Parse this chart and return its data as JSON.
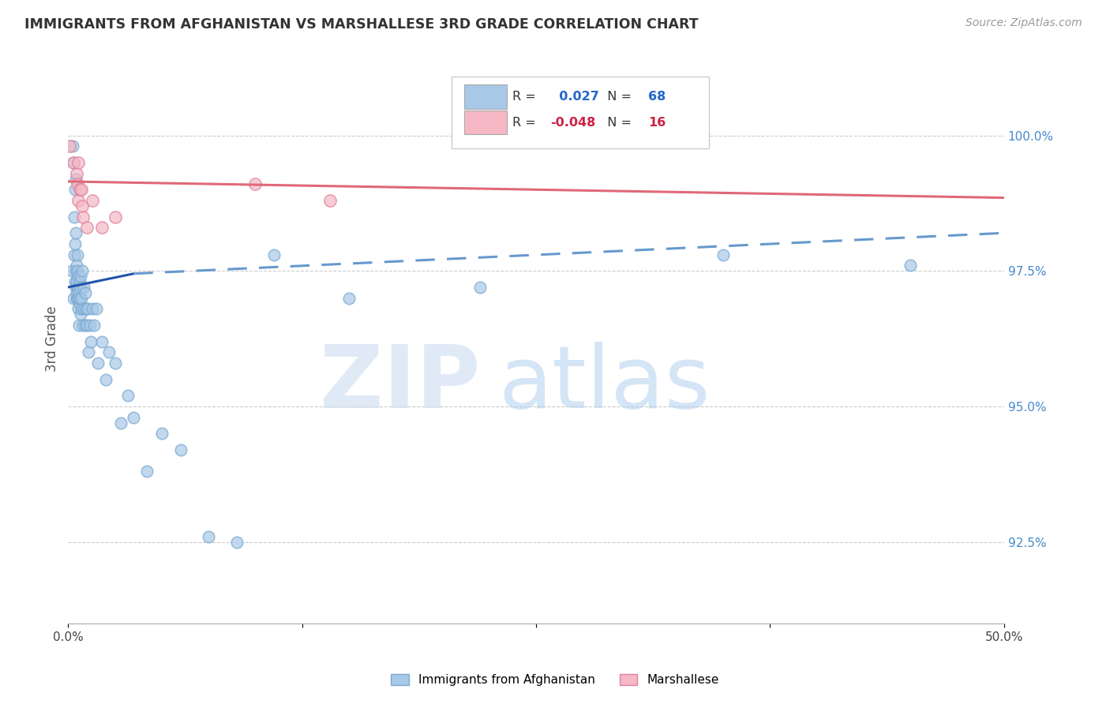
{
  "title": "IMMIGRANTS FROM AFGHANISTAN VS MARSHALLESE 3RD GRADE CORRELATION CHART",
  "source": "Source: ZipAtlas.com",
  "ylabel": "3rd Grade",
  "yticks": [
    92.5,
    95.0,
    97.5,
    100.0
  ],
  "ytick_labels": [
    "92.5%",
    "95.0%",
    "97.5%",
    "100.0%"
  ],
  "xlim": [
    0.0,
    50.0
  ],
  "ylim": [
    91.0,
    101.5
  ],
  "r_blue": 0.027,
  "n_blue": 68,
  "r_pink": -0.048,
  "n_pink": 16,
  "legend_label_blue": "Immigrants from Afghanistan",
  "legend_label_pink": "Marshallese",
  "blue_color": "#a8c8e8",
  "blue_edge_color": "#7aaad0",
  "pink_color": "#f5b8c4",
  "pink_edge_color": "#e080a0",
  "trend_blue_solid_color": "#2255aa",
  "trend_blue_dashed_color": "#6699cc",
  "trend_pink_color": "#e06878",
  "watermark_zip": "ZIP",
  "watermark_atlas": "atlas",
  "blue_points_x": [
    0.18,
    0.25,
    0.28,
    0.3,
    0.32,
    0.33,
    0.35,
    0.35,
    0.38,
    0.4,
    0.42,
    0.42,
    0.43,
    0.44,
    0.45,
    0.46,
    0.47,
    0.48,
    0.48,
    0.5,
    0.5,
    0.52,
    0.53,
    0.55,
    0.55,
    0.57,
    0.58,
    0.6,
    0.6,
    0.62,
    0.65,
    0.65,
    0.68,
    0.7,
    0.72,
    0.75,
    0.8,
    0.82,
    0.85,
    0.9,
    0.92,
    0.95,
    1.0,
    1.05,
    1.1,
    1.15,
    1.2,
    1.3,
    1.4,
    1.5,
    1.6,
    1.8,
    2.0,
    2.2,
    2.5,
    2.8,
    3.2,
    3.5,
    4.2,
    5.0,
    6.0,
    7.5,
    9.0,
    11.0,
    15.0,
    22.0,
    35.0,
    45.0
  ],
  "blue_points_y": [
    97.5,
    99.8,
    99.5,
    97.0,
    97.8,
    98.5,
    99.0,
    97.3,
    98.0,
    99.2,
    97.5,
    98.2,
    97.2,
    97.0,
    97.6,
    97.1,
    97.3,
    97.8,
    97.0,
    97.5,
    97.2,
    97.0,
    97.4,
    96.8,
    97.2,
    96.5,
    97.1,
    97.3,
    96.9,
    97.0,
    96.7,
    97.4,
    97.2,
    96.8,
    97.0,
    97.5,
    96.5,
    97.2,
    96.8,
    97.1,
    96.5,
    96.8,
    96.5,
    96.8,
    96.0,
    96.5,
    96.2,
    96.8,
    96.5,
    96.8,
    95.8,
    96.2,
    95.5,
    96.0,
    95.8,
    94.7,
    95.2,
    94.8,
    93.8,
    94.5,
    94.2,
    92.6,
    92.5,
    97.8,
    97.0,
    97.2,
    97.8,
    97.6
  ],
  "pink_points_x": [
    0.08,
    0.3,
    0.45,
    0.48,
    0.52,
    0.55,
    0.62,
    0.7,
    0.75,
    0.8,
    1.0,
    1.3,
    1.8,
    2.5,
    10.0,
    14.0
  ],
  "pink_points_y": [
    99.8,
    99.5,
    99.3,
    99.1,
    99.5,
    98.8,
    99.0,
    99.0,
    98.7,
    98.5,
    98.3,
    98.8,
    98.3,
    98.5,
    99.1,
    98.8
  ],
  "blue_solid_x0": 0.0,
  "blue_solid_x1": 3.5,
  "blue_solid_y0": 97.2,
  "blue_solid_y1": 97.45,
  "blue_dashed_x0": 3.5,
  "blue_dashed_x1": 50.0,
  "blue_dashed_y0": 97.45,
  "blue_dashed_y1": 98.2,
  "pink_line_x0": 0.0,
  "pink_line_x1": 50.0,
  "pink_line_y0": 99.15,
  "pink_line_y1": 98.85
}
